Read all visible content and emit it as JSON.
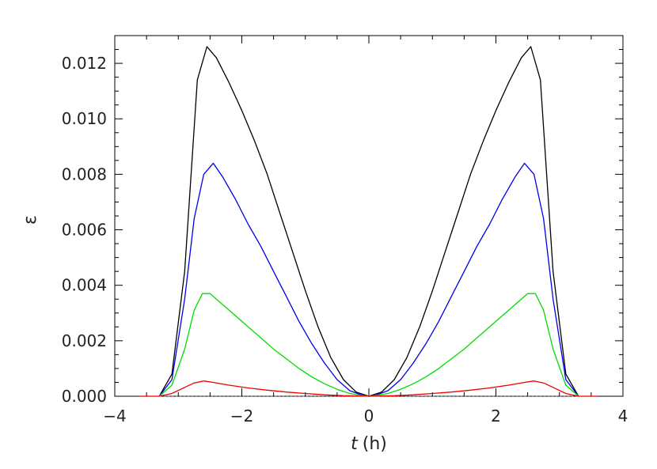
{
  "chart_data": {
    "type": "line",
    "xlabel_var": "t",
    "xlabel_unit": "(h)",
    "ylabel": "ε",
    "xlim": [
      -4,
      4
    ],
    "ylim": [
      0,
      0.013
    ],
    "x_ticks": [
      {
        "value": -4,
        "label": "−4"
      },
      {
        "value": -2,
        "label": "−2"
      },
      {
        "value": 0,
        "label": "0"
      },
      {
        "value": 2,
        "label": "2"
      },
      {
        "value": 4,
        "label": "4"
      }
    ],
    "y_ticks": [
      {
        "value": 0.0,
        "label": "0.000"
      },
      {
        "value": 0.002,
        "label": "0.002"
      },
      {
        "value": 0.004,
        "label": "0.004"
      },
      {
        "value": 0.006,
        "label": "0.006"
      },
      {
        "value": 0.008,
        "label": "0.008"
      },
      {
        "value": 0.01,
        "label": "0.010"
      },
      {
        "value": 0.012,
        "label": "0.012"
      }
    ],
    "grid": false,
    "zero_line": {
      "y": 0,
      "x_range": [
        -3.6,
        3.6
      ],
      "style": "dotted"
    },
    "series": [
      {
        "color": "#000000",
        "points": [
          [
            -3.3,
            0.0
          ],
          [
            -3.1,
            0.0008
          ],
          [
            -2.9,
            0.0045
          ],
          [
            -2.7,
            0.0114
          ],
          [
            -2.55,
            0.0126
          ],
          [
            -2.4,
            0.0122
          ],
          [
            -2.2,
            0.0113
          ],
          [
            -2.0,
            0.0103
          ],
          [
            -1.8,
            0.0092
          ],
          [
            -1.6,
            0.008
          ],
          [
            -1.4,
            0.0066
          ],
          [
            -1.2,
            0.0052
          ],
          [
            -1.0,
            0.0038
          ],
          [
            -0.8,
            0.0025
          ],
          [
            -0.6,
            0.0014
          ],
          [
            -0.4,
            0.0006
          ],
          [
            -0.2,
            0.00015
          ],
          [
            0.0,
            0.0
          ],
          [
            0.2,
            0.00015
          ],
          [
            0.4,
            0.0006
          ],
          [
            0.6,
            0.0014
          ],
          [
            0.8,
            0.0025
          ],
          [
            1.0,
            0.0038
          ],
          [
            1.2,
            0.0052
          ],
          [
            1.4,
            0.0066
          ],
          [
            1.6,
            0.008
          ],
          [
            1.8,
            0.0092
          ],
          [
            2.0,
            0.0103
          ],
          [
            2.2,
            0.0113
          ],
          [
            2.4,
            0.0122
          ],
          [
            2.55,
            0.0126
          ],
          [
            2.7,
            0.0114
          ],
          [
            2.9,
            0.0045
          ],
          [
            3.1,
            0.0008
          ],
          [
            3.3,
            0.0
          ]
        ]
      },
      {
        "color": "#0000ee",
        "points": [
          [
            -3.3,
            0.0
          ],
          [
            -3.1,
            0.0006
          ],
          [
            -2.9,
            0.0035
          ],
          [
            -2.75,
            0.0064
          ],
          [
            -2.6,
            0.008
          ],
          [
            -2.45,
            0.0084
          ],
          [
            -2.3,
            0.0079
          ],
          [
            -2.1,
            0.0071
          ],
          [
            -1.9,
            0.0062
          ],
          [
            -1.7,
            0.0054
          ],
          [
            -1.5,
            0.0045
          ],
          [
            -1.3,
            0.0036
          ],
          [
            -1.1,
            0.0027
          ],
          [
            -0.9,
            0.0019
          ],
          [
            -0.7,
            0.0012
          ],
          [
            -0.5,
            0.0006
          ],
          [
            -0.3,
            0.0002
          ],
          [
            -0.1,
            3e-05
          ],
          [
            0.0,
            0.0
          ],
          [
            0.1,
            3e-05
          ],
          [
            0.3,
            0.0002
          ],
          [
            0.5,
            0.0006
          ],
          [
            0.7,
            0.0012
          ],
          [
            0.9,
            0.0019
          ],
          [
            1.1,
            0.0027
          ],
          [
            1.3,
            0.0036
          ],
          [
            1.5,
            0.0045
          ],
          [
            1.7,
            0.0054
          ],
          [
            1.9,
            0.0062
          ],
          [
            2.1,
            0.0071
          ],
          [
            2.3,
            0.0079
          ],
          [
            2.45,
            0.0084
          ],
          [
            2.6,
            0.008
          ],
          [
            2.75,
            0.0064
          ],
          [
            2.9,
            0.0035
          ],
          [
            3.1,
            0.0006
          ],
          [
            3.3,
            0.0
          ]
        ]
      },
      {
        "color": "#00dd00",
        "points": [
          [
            -3.3,
            0.0
          ],
          [
            -3.1,
            0.0004
          ],
          [
            -2.9,
            0.0017
          ],
          [
            -2.75,
            0.0031
          ],
          [
            -2.62,
            0.0037
          ],
          [
            -2.5,
            0.0037
          ],
          [
            -2.3,
            0.0033
          ],
          [
            -2.1,
            0.0029
          ],
          [
            -1.9,
            0.0025
          ],
          [
            -1.7,
            0.0021
          ],
          [
            -1.5,
            0.0017
          ],
          [
            -1.3,
            0.00135
          ],
          [
            -1.1,
            0.001
          ],
          [
            -0.9,
            0.0007
          ],
          [
            -0.7,
            0.00045
          ],
          [
            -0.5,
            0.00025
          ],
          [
            -0.3,
            0.0001
          ],
          [
            -0.1,
            2e-05
          ],
          [
            0.0,
            0.0
          ],
          [
            0.1,
            2e-05
          ],
          [
            0.3,
            0.0001
          ],
          [
            0.5,
            0.00025
          ],
          [
            0.7,
            0.00045
          ],
          [
            0.9,
            0.0007
          ],
          [
            1.1,
            0.001
          ],
          [
            1.3,
            0.00135
          ],
          [
            1.5,
            0.0017
          ],
          [
            1.7,
            0.0021
          ],
          [
            1.9,
            0.0025
          ],
          [
            2.1,
            0.0029
          ],
          [
            2.3,
            0.0033
          ],
          [
            2.5,
            0.0037
          ],
          [
            2.62,
            0.0037
          ],
          [
            2.75,
            0.0031
          ],
          [
            2.9,
            0.0017
          ],
          [
            3.1,
            0.0004
          ],
          [
            3.3,
            0.0
          ]
        ]
      },
      {
        "color": "#ee0000",
        "points": [
          [
            -3.6,
            0.0
          ],
          [
            -3.3,
            0.0
          ],
          [
            -3.1,
            0.0001
          ],
          [
            -2.9,
            0.00032
          ],
          [
            -2.75,
            0.00048
          ],
          [
            -2.6,
            0.00055
          ],
          [
            -2.45,
            0.0005
          ],
          [
            -2.2,
            0.0004
          ],
          [
            -1.9,
            0.0003
          ],
          [
            -1.6,
            0.00022
          ],
          [
            -1.3,
            0.00015
          ],
          [
            -1.0,
            0.0001
          ],
          [
            -0.7,
            5e-05
          ],
          [
            -0.4,
            2e-05
          ],
          [
            0.0,
            0.0
          ],
          [
            0.4,
            2e-05
          ],
          [
            0.7,
            5e-05
          ],
          [
            1.0,
            0.0001
          ],
          [
            1.3,
            0.00015
          ],
          [
            1.6,
            0.00022
          ],
          [
            1.9,
            0.0003
          ],
          [
            2.2,
            0.0004
          ],
          [
            2.45,
            0.0005
          ],
          [
            2.6,
            0.00055
          ],
          [
            2.75,
            0.00048
          ],
          [
            2.9,
            0.00032
          ],
          [
            3.1,
            0.0001
          ],
          [
            3.3,
            0.0
          ],
          [
            3.6,
            0.0
          ]
        ]
      }
    ]
  }
}
